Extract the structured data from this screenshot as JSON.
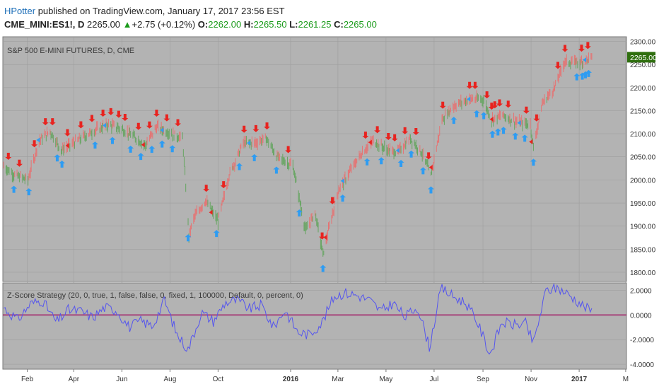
{
  "header": {
    "author": "HPotter",
    "published": "published on TradingView.com, January 17, 2017 23:56 EST",
    "symbol": "CME_MINI:ES1!, D",
    "price": "2265.00",
    "change_arrow": "▲",
    "change": "+2.75 (+0.12%)",
    "o_label": "O:",
    "o_value": "2262.00",
    "h_label": "H:",
    "h_value": "2265.50",
    "l_label": "L:",
    "l_value": "2261.25",
    "c_label": "C:",
    "c_value": "2265.00"
  },
  "chart_data": [
    {
      "type": "line",
      "title": "S&P 500 E-MINI FUTURES, D, CME",
      "last_price_label": "2265.00",
      "ylim": [
        1780,
        2310
      ],
      "yticks": [
        "2300.00",
        "2250.00",
        "2200.00",
        "2150.00",
        "2100.00",
        "2050.00",
        "2000.00",
        "1950.00",
        "1900.00",
        "1850.00",
        "1800.00"
      ],
      "x_ticks": [
        "Feb",
        "Apr",
        "Jun",
        "Aug",
        "Oct",
        "2016",
        "Mar",
        "May",
        "Jul",
        "Sep",
        "Nov",
        "2017",
        "M"
      ],
      "grid": true,
      "colors": {
        "up_bar": "#e57373",
        "down_bar": "#66a561",
        "sell_signal": "#e8231f",
        "buy_signal": "#2e9cf2",
        "panel_bg": "#b3b3b3"
      },
      "series": [
        {
          "x": [
            "2015-01-02",
            "2015-01-16",
            "2015-02-02",
            "2015-02-16",
            "2015-03-02",
            "2015-03-16",
            "2015-04-01",
            "2015-04-15",
            "2015-05-01",
            "2015-05-15",
            "2015-06-01",
            "2015-06-15",
            "2015-07-01",
            "2015-07-15",
            "2015-08-03",
            "2015-08-17",
            "2015-08-25",
            "2015-09-01",
            "2015-09-15",
            "2015-10-01",
            "2015-10-15",
            "2015-11-02",
            "2015-11-16",
            "2015-12-01",
            "2015-12-15",
            "2016-01-04",
            "2016-01-20",
            "2016-02-01",
            "2016-02-11",
            "2016-03-01",
            "2016-03-15",
            "2016-04-01",
            "2016-04-15",
            "2016-05-02",
            "2016-05-16",
            "2016-06-01",
            "2016-06-15",
            "2016-06-27",
            "2016-07-11",
            "2016-07-25",
            "2016-08-15",
            "2016-09-01",
            "2016-09-12",
            "2016-09-26",
            "2016-10-14",
            "2016-10-31",
            "2016-11-04",
            "2016-11-15",
            "2016-12-01",
            "2016-12-13",
            "2017-01-03",
            "2017-01-17"
          ],
          "values": [
            2030,
            2010,
            2000,
            2085,
            2105,
            2065,
            2080,
            2095,
            2110,
            2120,
            2110,
            2095,
            2075,
            2115,
            2100,
            2090,
            1880,
            1920,
            1955,
            1910,
            2010,
            2080,
            2080,
            2090,
            2050,
            2030,
            1890,
            1930,
            1840,
            1975,
            2015,
            2060,
            2085,
            2065,
            2060,
            2090,
            2060,
            2010,
            2130,
            2160,
            2175,
            2175,
            2130,
            2140,
            2125,
            2120,
            2070,
            2165,
            2200,
            2255,
            2255,
            2265
          ]
        }
      ],
      "signals": {
        "sell_count": 56,
        "buy_count": 38
      }
    },
    {
      "type": "line",
      "title": "Z-Score Strategy (20, 0, true, 1, false, false, 0, fixed, 1, 100000, Default, 0, percent, 0)",
      "ylim": [
        -4.4,
        2.6
      ],
      "yticks": [
        "2.0000",
        "0.0000",
        "-2.0000",
        "-4.0000"
      ],
      "zero_line": 0,
      "colors": {
        "line": "#5555ee",
        "zero_line": "#a01060",
        "panel_bg": "#b3b3b3"
      },
      "series": [
        {
          "x": [
            "2015-01-02",
            "2015-01-20",
            "2015-02-05",
            "2015-02-20",
            "2015-03-10",
            "2015-03-25",
            "2015-04-10",
            "2015-04-25",
            "2015-05-10",
            "2015-05-25",
            "2015-06-10",
            "2015-06-25",
            "2015-07-10",
            "2015-07-25",
            "2015-08-10",
            "2015-08-24",
            "2015-09-10",
            "2015-09-25",
            "2015-10-10",
            "2015-10-25",
            "2015-11-10",
            "2015-11-25",
            "2015-12-10",
            "2015-12-25",
            "2016-01-10",
            "2016-01-25",
            "2016-02-10",
            "2016-02-25",
            "2016-03-10",
            "2016-03-25",
            "2016-04-10",
            "2016-04-25",
            "2016-05-10",
            "2016-05-25",
            "2016-06-10",
            "2016-06-25",
            "2016-07-10",
            "2016-07-25",
            "2016-08-10",
            "2016-08-25",
            "2016-09-10",
            "2016-09-25",
            "2016-10-10",
            "2016-10-25",
            "2016-11-04",
            "2016-11-20",
            "2016-12-05",
            "2016-12-20",
            "2017-01-05",
            "2017-01-17"
          ],
          "values": [
            0.6,
            -0.4,
            0.9,
            1.2,
            -0.6,
            0.4,
            0.3,
            -0.2,
            0.6,
            0.4,
            -1.0,
            -0.5,
            -0.9,
            1.2,
            -1.6,
            -2.8,
            0.2,
            -0.5,
            1.0,
            1.2,
            0.5,
            0.8,
            -1.0,
            0.4,
            -1.4,
            -1.6,
            -0.6,
            1.5,
            1.8,
            1.6,
            1.2,
            0.3,
            1.0,
            -0.2,
            0.7,
            -2.6,
            2.2,
            1.5,
            1.0,
            -0.6,
            -3.2,
            -0.6,
            -0.8,
            -0.7,
            -2.3,
            2.0,
            2.2,
            1.6,
            0.8,
            0.3
          ]
        }
      ]
    }
  ]
}
